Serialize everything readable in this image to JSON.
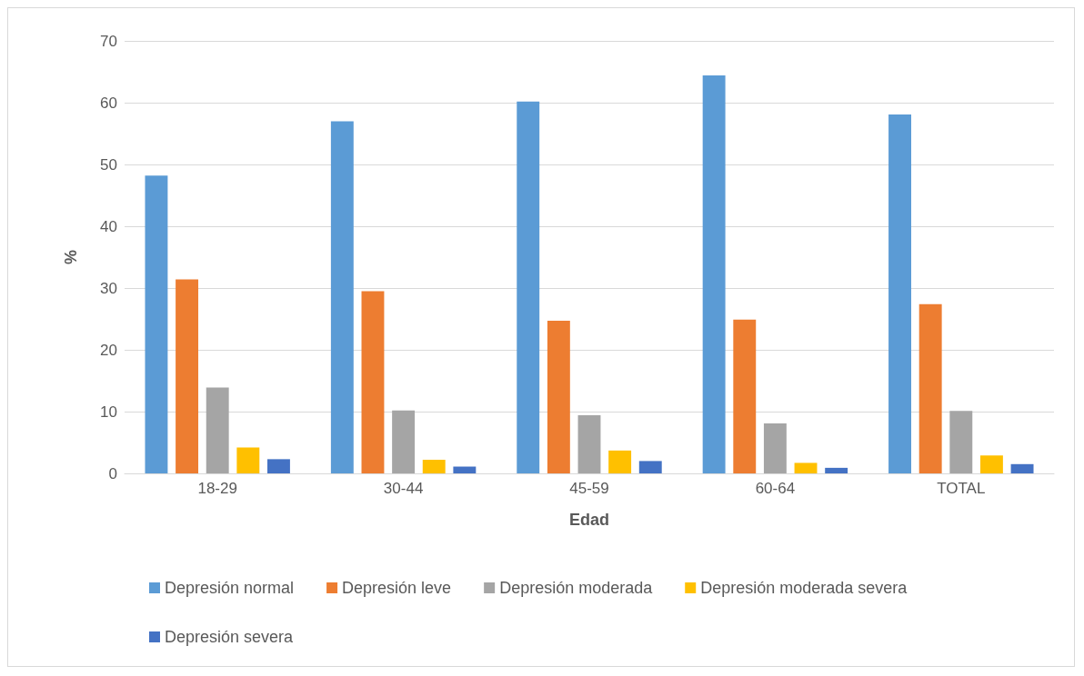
{
  "chart_data": {
    "type": "bar",
    "xlabel": "Edad",
    "ylabel": "%",
    "categories": [
      "18-29",
      "30-44",
      "45-59",
      "60-64",
      "TOTAL"
    ],
    "series": [
      {
        "name": "Depresión normal",
        "color": "#5b9bd5",
        "values": [
          48.2,
          57.0,
          60.2,
          64.4,
          58.1
        ]
      },
      {
        "name": "Depresión leve",
        "color": "#ed7d31",
        "values": [
          31.4,
          29.5,
          24.7,
          24.9,
          27.4
        ]
      },
      {
        "name": "Depresión moderada",
        "color": "#a5a5a5",
        "values": [
          13.9,
          10.2,
          9.4,
          8.1,
          10.1
        ]
      },
      {
        "name": "Depresión moderada severa",
        "color": "#ffc000",
        "values": [
          4.2,
          2.2,
          3.7,
          1.7,
          2.9
        ]
      },
      {
        "name": "Depresión severa",
        "color": "#4472c4",
        "values": [
          2.3,
          1.1,
          2.0,
          0.9,
          1.5
        ]
      }
    ],
    "ylim": [
      0,
      70
    ],
    "yticks": [
      0,
      10,
      20,
      30,
      40,
      50,
      60,
      70
    ],
    "grid": "y",
    "legend": "bottom"
  }
}
